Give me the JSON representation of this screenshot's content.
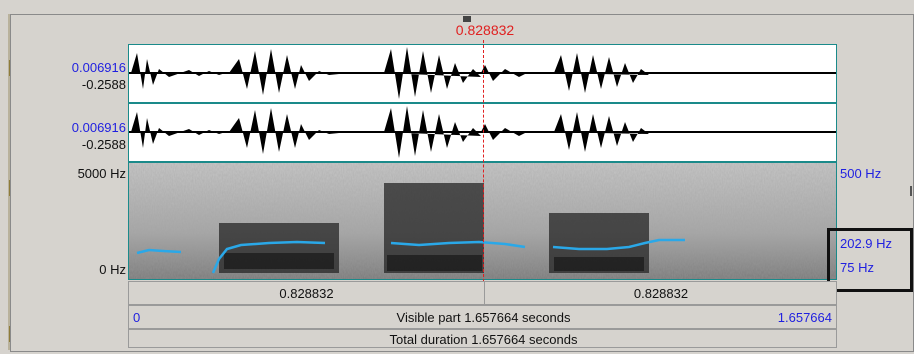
{
  "cursor": {
    "time": "0.828832"
  },
  "channels": [
    {
      "max": "0.006916",
      "min": "-0.2588"
    },
    {
      "max": "0.006916",
      "min": "-0.2588"
    }
  ],
  "spectrogram": {
    "top_freq": "5000 Hz",
    "bottom_freq": "0 Hz",
    "pitch_ceiling": "500 Hz",
    "pitch_value": "202.9 Hz",
    "pitch_floor": "75 Hz"
  },
  "timebar": {
    "left_segment": "0.828832",
    "right_segment": "0.828832",
    "start": "0",
    "visible_part": "Visible part 1.657664 seconds",
    "end": "1.657664",
    "total_duration": "Total duration 1.657664 seconds"
  },
  "colors": {
    "cursor": "#e02020",
    "pitch": "#2aa8e8",
    "frame": "#1a8a8a",
    "label_blue": "#1f1fe0"
  }
}
